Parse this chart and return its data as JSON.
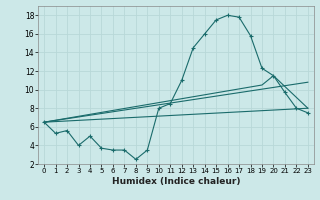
{
  "xlabel": "Humidex (Indice chaleur)",
  "bg_color": "#cce8e8",
  "line_color": "#1a6b6b",
  "grid_color": "#b8d8d8",
  "xlim": [
    -0.5,
    23.5
  ],
  "ylim": [
    2,
    19
  ],
  "yticks": [
    2,
    4,
    6,
    8,
    10,
    12,
    14,
    16,
    18
  ],
  "xticks": [
    0,
    1,
    2,
    3,
    4,
    5,
    6,
    7,
    8,
    9,
    10,
    11,
    12,
    13,
    14,
    15,
    16,
    17,
    18,
    19,
    20,
    21,
    22,
    23
  ],
  "line1_x": [
    0,
    1,
    2,
    3,
    4,
    5,
    6,
    7,
    8,
    9,
    10,
    11,
    12,
    13,
    14,
    15,
    16,
    17,
    18,
    19,
    20,
    21,
    22,
    23
  ],
  "line1_y": [
    6.5,
    5.3,
    5.6,
    4.0,
    5.0,
    3.7,
    3.5,
    3.5,
    2.5,
    3.5,
    8.0,
    8.5,
    11.0,
    14.5,
    16.0,
    17.5,
    18.0,
    17.8,
    15.8,
    12.3,
    11.5,
    9.7,
    8.0,
    7.5
  ],
  "line2_x": [
    0,
    23
  ],
  "line2_y": [
    6.5,
    8.0
  ],
  "line3_x": [
    0,
    23
  ],
  "line3_y": [
    6.5,
    10.8
  ],
  "line4_x": [
    0,
    19,
    20,
    23
  ],
  "line4_y": [
    6.5,
    10.5,
    11.5,
    8.0
  ]
}
